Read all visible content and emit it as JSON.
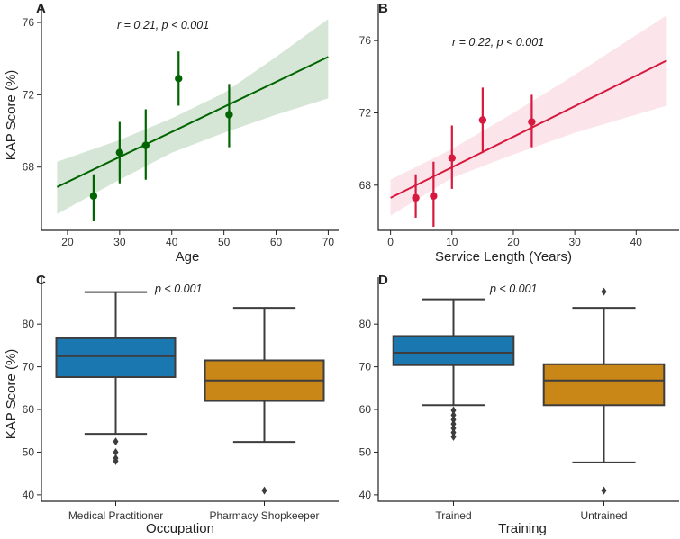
{
  "chart_data": [
    {
      "panel": "A",
      "type": "scatter",
      "annotation": "r = 0.21, p < 0.001",
      "xlabel": "Age",
      "ylabel": "KAP Score (%)",
      "xlim": [
        15,
        72
      ],
      "ylim": [
        64.5,
        77
      ],
      "xticks": [
        "20",
        "30",
        "40",
        "50",
        "60",
        "70"
      ],
      "yticks": [
        "68",
        "72",
        "76"
      ],
      "color": "#006400",
      "band_color": "#006400",
      "points": [
        {
          "x": 25,
          "y": 66.4,
          "lo": 65.0,
          "hi": 67.6
        },
        {
          "x": 30,
          "y": 68.8,
          "lo": 67.1,
          "hi": 70.5
        },
        {
          "x": 35,
          "y": 69.2,
          "lo": 67.3,
          "hi": 71.2
        },
        {
          "x": 41.3,
          "y": 72.9,
          "lo": 71.4,
          "hi": 74.4
        },
        {
          "x": 51,
          "y": 70.9,
          "lo": 69.1,
          "hi": 72.6
        }
      ],
      "fit": {
        "x": [
          18,
          70
        ],
        "y": [
          66.9,
          74.1
        ]
      },
      "band": {
        "x": [
          18,
          30,
          40,
          50,
          60,
          70
        ],
        "lo": [
          65.4,
          67.3,
          68.8,
          69.9,
          70.9,
          71.8
        ],
        "hi": [
          68.3,
          69.5,
          70.7,
          72.1,
          74.1,
          76.2
        ]
      }
    },
    {
      "panel": "B",
      "type": "scatter",
      "annotation": "r = 0.22, p < 0.001",
      "xlabel": "Service Length (Years)",
      "ylabel": "",
      "xlim": [
        -2,
        47
      ],
      "ylim": [
        65.5,
        78
      ],
      "xticks": [
        "0",
        "10",
        "20",
        "30",
        "40"
      ],
      "yticks": [
        "68",
        "72",
        "76"
      ],
      "color": "#d7193e",
      "band_color": "#e8597a",
      "points": [
        {
          "x": 4.1,
          "y": 67.3,
          "lo": 66.2,
          "hi": 68.6
        },
        {
          "x": 7,
          "y": 67.4,
          "lo": 65.7,
          "hi": 69.3
        },
        {
          "x": 10,
          "y": 69.5,
          "lo": 67.8,
          "hi": 71.3
        },
        {
          "x": 15,
          "y": 71.6,
          "lo": 69.8,
          "hi": 73.4
        },
        {
          "x": 23,
          "y": 71.5,
          "lo": 70.1,
          "hi": 73.0
        }
      ],
      "fit": {
        "x": [
          0,
          45
        ],
        "y": [
          67.3,
          74.9
        ]
      },
      "band": {
        "x": [
          0,
          10,
          20,
          30,
          45
        ],
        "lo": [
          66.3,
          68.4,
          69.7,
          70.9,
          72.4
        ],
        "hi": [
          68.3,
          70.0,
          72.0,
          74.1,
          77.4
        ]
      }
    },
    {
      "panel": "C",
      "type": "box",
      "annotation": "p < 0.001",
      "xlabel": "Occupation",
      "ylabel": "KAP Score (%)",
      "ylim": [
        38.5,
        91
      ],
      "yticks": [
        "40",
        "50",
        "60",
        "70",
        "80"
      ],
      "categories": [
        "Medical Practitioner",
        "Pharmacy Shopkeeper"
      ],
      "boxes": [
        {
          "color": "#1a77b0",
          "whislo": 54.3,
          "q1": 67.6,
          "med": 72.5,
          "q3": 76.7,
          "whishi": 87.5,
          "fliers": [
            52.5,
            50.0,
            48.6,
            47.9
          ]
        },
        {
          "color": "#c98718",
          "whislo": 52.4,
          "q1": 62.0,
          "med": 66.8,
          "q3": 71.5,
          "whishi": 83.8,
          "fliers": [
            41.0
          ]
        }
      ]
    },
    {
      "panel": "D",
      "type": "box",
      "annotation": "p < 0.001",
      "xlabel": "Training",
      "ylabel": "",
      "ylim": [
        38.5,
        91
      ],
      "yticks": [
        "40",
        "50",
        "60",
        "70",
        "80"
      ],
      "categories": [
        "Trained",
        "Untrained"
      ],
      "boxes": [
        {
          "color": "#1a77b0",
          "whislo": 61.0,
          "q1": 70.4,
          "med": 73.3,
          "q3": 77.2,
          "whishi": 85.8,
          "fliers": [
            59.8,
            58.7,
            57.6,
            56.6,
            55.6,
            54.6,
            53.6
          ]
        },
        {
          "color": "#c98718",
          "whislo": 47.6,
          "q1": 61.0,
          "med": 66.8,
          "q3": 70.6,
          "whishi": 83.8,
          "fliers": [
            87.6,
            41.0
          ]
        }
      ]
    }
  ]
}
